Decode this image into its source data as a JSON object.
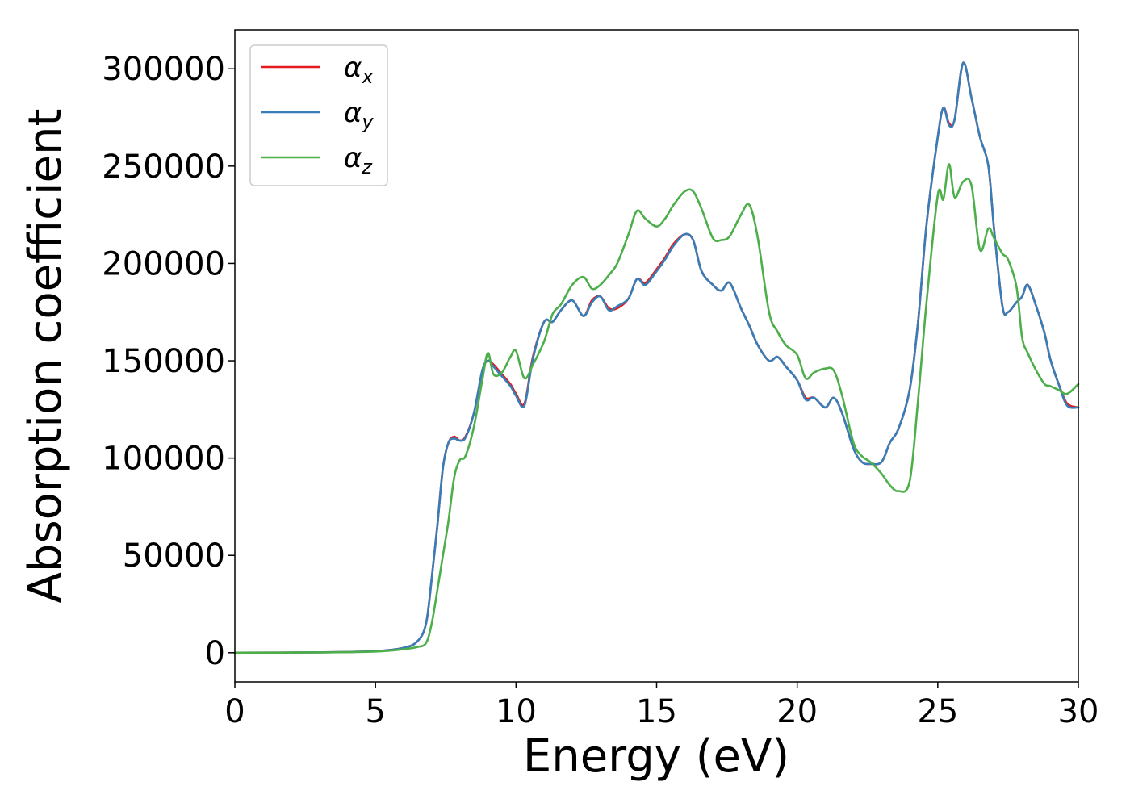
{
  "chart_data": {
    "type": "line",
    "title": "",
    "xlabel": "Energy (eV)",
    "ylabel": "Absorption coefficient",
    "xlim": [
      0,
      30
    ],
    "ylim": [
      -15000,
      320000
    ],
    "xticks": [
      0,
      5,
      10,
      15,
      20,
      25,
      30
    ],
    "yticks": [
      0,
      50000,
      100000,
      150000,
      200000,
      250000,
      300000
    ],
    "grid": false,
    "legend_position": "upper-left",
    "series": [
      {
        "name": "α_x",
        "label_main": "α",
        "label_sub": "x",
        "color": "#e41a1c",
        "x": [
          0,
          3,
          5,
          6,
          6.5,
          6.8,
          7.0,
          7.2,
          7.4,
          7.6,
          7.8,
          8.0,
          8.2,
          8.5,
          8.8,
          9.0,
          9.2,
          9.5,
          9.8,
          10.0,
          10.3,
          10.6,
          11.0,
          11.3,
          11.6,
          12.0,
          12.4,
          12.7,
          13.0,
          13.3,
          13.6,
          14.0,
          14.3,
          14.6,
          15.0,
          15.3,
          15.6,
          16.0,
          16.3,
          16.6,
          17.0,
          17.3,
          17.6,
          18.0,
          18.3,
          18.6,
          19.0,
          19.3,
          19.6,
          20.0,
          20.3,
          20.6,
          21.0,
          21.3,
          21.6,
          22.0,
          22.3,
          22.6,
          23.0,
          23.3,
          23.6,
          24.0,
          24.3,
          24.6,
          25.0,
          25.2,
          25.4,
          25.6,
          25.9,
          26.2,
          26.5,
          26.8,
          27.0,
          27.3,
          27.5,
          27.8,
          28.0,
          28.2,
          28.5,
          28.8,
          29.0,
          29.3,
          29.6,
          30.0
        ],
        "y": [
          0,
          200,
          800,
          2500,
          6000,
          15000,
          38000,
          65000,
          95000,
          108000,
          111000,
          109000,
          111000,
          123000,
          145000,
          150000,
          148000,
          143000,
          138000,
          133000,
          128000,
          152000,
          170000,
          170000,
          176000,
          181000,
          173000,
          181000,
          183000,
          177000,
          177000,
          182000,
          192000,
          190000,
          197000,
          203000,
          210000,
          215000,
          212000,
          196000,
          189000,
          186000,
          190000,
          177000,
          168000,
          158000,
          150000,
          152000,
          147000,
          140000,
          131000,
          131000,
          126000,
          131000,
          123000,
          105000,
          98000,
          97000,
          98000,
          108000,
          115000,
          135000,
          170000,
          220000,
          265000,
          280000,
          272000,
          274000,
          303000,
          285000,
          265000,
          250000,
          218000,
          178000,
          175000,
          180000,
          183000,
          189000,
          178000,
          164000,
          151000,
          138000,
          128000,
          126000
        ]
      },
      {
        "name": "α_y",
        "label_main": "α",
        "label_sub": "y",
        "color": "#377eb8",
        "x": [
          0,
          3,
          5,
          6,
          6.5,
          6.8,
          7.0,
          7.2,
          7.4,
          7.6,
          7.8,
          8.0,
          8.2,
          8.5,
          8.8,
          9.0,
          9.2,
          9.5,
          9.8,
          10.0,
          10.3,
          10.6,
          11.0,
          11.3,
          11.6,
          12.0,
          12.4,
          12.7,
          13.0,
          13.3,
          13.6,
          14.0,
          14.3,
          14.6,
          15.0,
          15.3,
          15.6,
          16.0,
          16.3,
          16.6,
          17.0,
          17.3,
          17.6,
          18.0,
          18.3,
          18.6,
          19.0,
          19.3,
          19.6,
          20.0,
          20.3,
          20.6,
          21.0,
          21.3,
          21.6,
          22.0,
          22.3,
          22.6,
          23.0,
          23.3,
          23.6,
          24.0,
          24.3,
          24.6,
          25.0,
          25.2,
          25.4,
          25.6,
          25.9,
          26.2,
          26.5,
          26.8,
          27.0,
          27.3,
          27.5,
          27.8,
          28.0,
          28.2,
          28.5,
          28.8,
          29.0,
          29.3,
          29.6,
          30.0
        ],
        "y": [
          0,
          200,
          800,
          2500,
          6000,
          15000,
          38000,
          65000,
          95000,
          108000,
          110000,
          109000,
          110500,
          123000,
          145000,
          150000,
          147000,
          142000,
          137000,
          132000,
          127000,
          151000,
          170000,
          170000,
          176000,
          181000,
          173000,
          180000,
          183000,
          176000,
          178000,
          182000,
          192000,
          189000,
          196000,
          202000,
          209000,
          215000,
          212000,
          196000,
          189000,
          186000,
          190000,
          177000,
          168000,
          158000,
          150000,
          152000,
          147000,
          140000,
          130000,
          131000,
          126000,
          131000,
          123000,
          105000,
          98000,
          97000,
          98000,
          108000,
          115000,
          135000,
          170000,
          220000,
          265000,
          280000,
          271000,
          274000,
          303000,
          285000,
          265000,
          250000,
          218000,
          178000,
          175000,
          180000,
          183000,
          189000,
          178000,
          164000,
          151000,
          138000,
          127000,
          126000
        ]
      },
      {
        "name": "α_z",
        "label_main": "α",
        "label_sub": "z",
        "color": "#4daf4a",
        "x": [
          0,
          3,
          5,
          6,
          6.5,
          6.8,
          7.0,
          7.2,
          7.4,
          7.6,
          7.8,
          8.0,
          8.2,
          8.5,
          8.8,
          9.0,
          9.2,
          9.5,
          9.8,
          10.0,
          10.3,
          10.6,
          11.0,
          11.3,
          11.6,
          12.0,
          12.4,
          12.7,
          13.0,
          13.3,
          13.6,
          14.0,
          14.3,
          14.6,
          15.0,
          15.3,
          15.6,
          16.0,
          16.3,
          16.6,
          17.0,
          17.3,
          17.6,
          18.0,
          18.3,
          18.6,
          19.0,
          19.3,
          19.6,
          20.0,
          20.3,
          20.6,
          21.0,
          21.3,
          21.6,
          22.0,
          22.3,
          22.6,
          23.0,
          23.3,
          23.6,
          24.0,
          24.3,
          24.6,
          25.0,
          25.2,
          25.4,
          25.6,
          25.9,
          26.2,
          26.5,
          26.8,
          27.0,
          27.3,
          27.5,
          27.8,
          28.0,
          28.2,
          28.5,
          28.8,
          29.0,
          29.3,
          29.6,
          30.0
        ],
        "y": [
          0,
          150,
          600,
          1800,
          3000,
          5000,
          15000,
          32000,
          50000,
          68000,
          90000,
          99000,
          101000,
          116000,
          140000,
          154000,
          143000,
          144000,
          152000,
          155000,
          141000,
          148000,
          160000,
          174000,
          179000,
          189000,
          193000,
          187000,
          189000,
          194000,
          200000,
          215000,
          227000,
          223000,
          219000,
          223000,
          230000,
          237000,
          237000,
          228000,
          213000,
          212000,
          214000,
          225000,
          230000,
          213000,
          175000,
          165000,
          158000,
          153000,
          141000,
          144000,
          146000,
          145000,
          132000,
          108000,
          101000,
          98000,
          92000,
          86000,
          83000,
          88000,
          130000,
          180000,
          235000,
          233000,
          251000,
          234000,
          242000,
          240000,
          207000,
          218000,
          213000,
          205000,
          202000,
          188000,
          162000,
          154000,
          145000,
          138000,
          137000,
          135000,
          133000,
          138000
        ]
      }
    ]
  }
}
